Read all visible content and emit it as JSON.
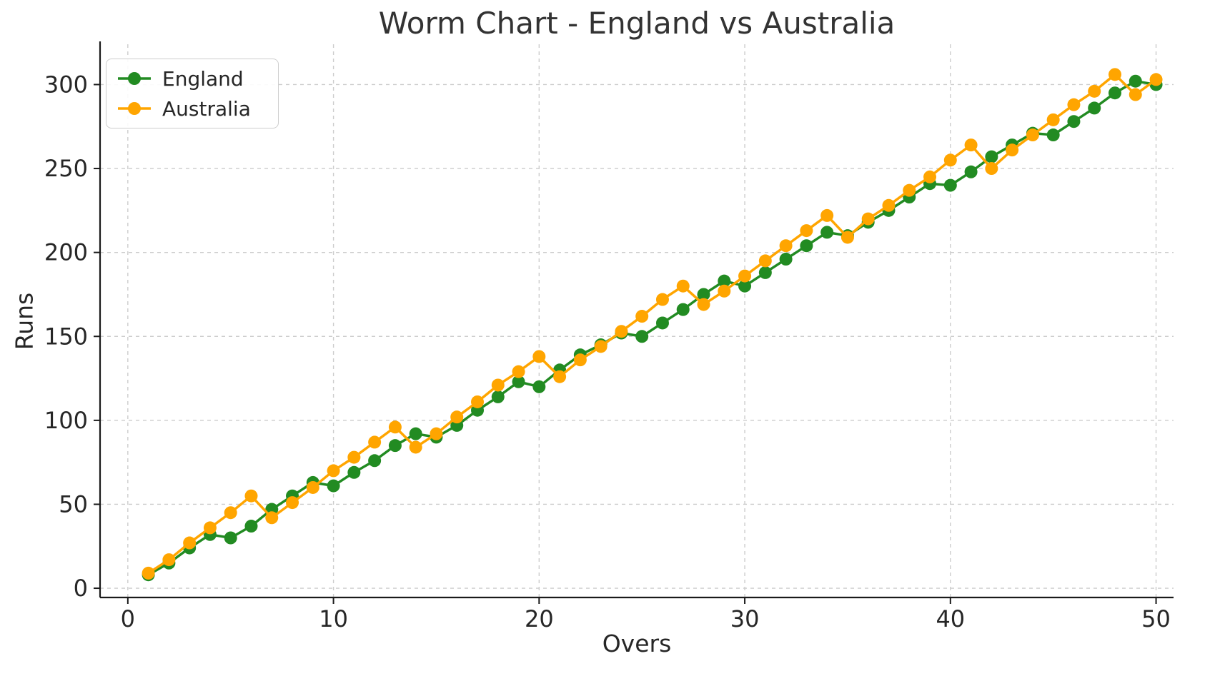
{
  "chart_data": {
    "type": "line",
    "title": "Worm Chart - England vs Australia",
    "xlabel": "Overs",
    "ylabel": "Runs",
    "x": [
      1,
      2,
      3,
      4,
      5,
      6,
      7,
      8,
      9,
      10,
      11,
      12,
      13,
      14,
      15,
      16,
      17,
      18,
      19,
      20,
      21,
      22,
      23,
      24,
      25,
      26,
      27,
      28,
      29,
      30,
      31,
      32,
      33,
      34,
      35,
      36,
      37,
      38,
      39,
      40,
      41,
      42,
      43,
      44,
      45,
      46,
      47,
      48,
      49,
      50
    ],
    "series": [
      {
        "name": "England",
        "color": "#228B22",
        "values": [
          8,
          15,
          24,
          32,
          30,
          37,
          47,
          55,
          63,
          61,
          69,
          76,
          85,
          92,
          90,
          97,
          106,
          114,
          123,
          120,
          130,
          139,
          145,
          152,
          150,
          158,
          166,
          175,
          183,
          180,
          188,
          196,
          204,
          212,
          210,
          218,
          225,
          233,
          241,
          240,
          248,
          257,
          264,
          271,
          270,
          278,
          286,
          295,
          302,
          300
        ]
      },
      {
        "name": "Australia",
        "color": "#FFA500",
        "values": [
          9,
          17,
          27,
          36,
          45,
          55,
          42,
          51,
          60,
          70,
          78,
          87,
          96,
          84,
          92,
          102,
          111,
          121,
          129,
          138,
          126,
          136,
          144,
          153,
          162,
          172,
          180,
          169,
          177,
          186,
          195,
          204,
          213,
          222,
          209,
          220,
          228,
          237,
          245,
          255,
          264,
          250,
          261,
          270,
          279,
          288,
          296,
          306,
          294,
          303
        ]
      }
    ],
    "xticks": [
      0,
      10,
      20,
      30,
      40,
      50
    ],
    "yticks": [
      0,
      50,
      100,
      150,
      200,
      250,
      300
    ],
    "xlim": [
      -1.35,
      50.85
    ],
    "ylim": [
      -5.5,
      324
    ],
    "grid": true,
    "grid_style": "dashed",
    "legend_position": "upper left",
    "marker": "o",
    "grid_color": "#cccccc",
    "spine_color": "#1a1a1a",
    "text_color": "#262626"
  }
}
